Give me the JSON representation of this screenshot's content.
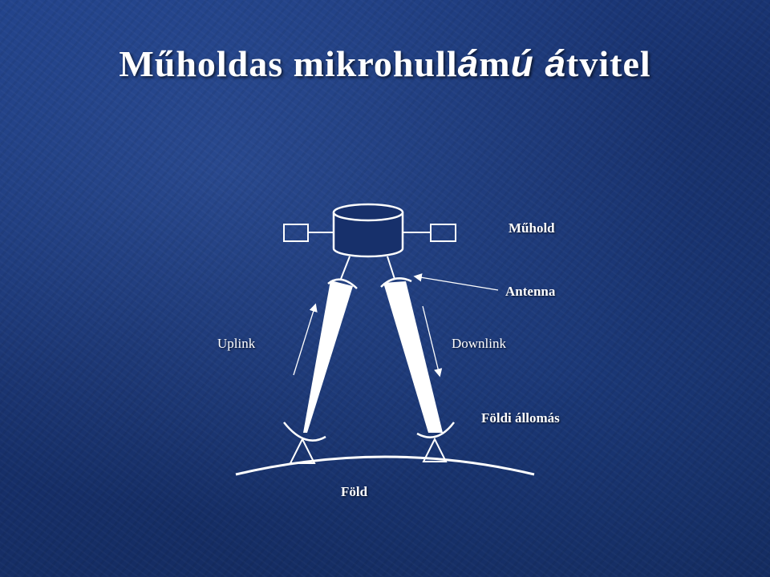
{
  "title": {
    "part1": "Műholdas mikrohull",
    "part2": "á",
    "part3": "m",
    "part4": "ú á",
    "part5": "tvitel"
  },
  "labels": {
    "satellite": "Műhold",
    "antenna": "Antenna",
    "uplink": "Uplink",
    "downlink": "Downlink",
    "ground_station": "Földi állomás",
    "earth": "Föld"
  }
}
